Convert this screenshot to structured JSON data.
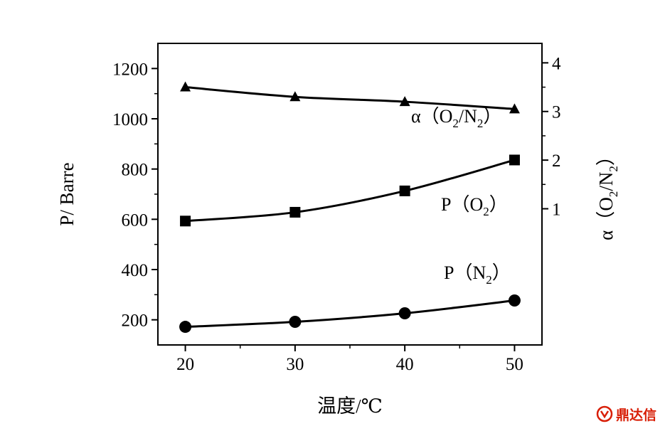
{
  "chart_data": {
    "type": "line",
    "x": [
      20,
      30,
      40,
      50
    ],
    "xlabel": "温度/℃",
    "ylabel": "P/ Barre",
    "y2label": "α（O2/N2）",
    "xlim": [
      17.5,
      52.5
    ],
    "ylim": [
      100,
      1300
    ],
    "y2lim": [
      -1.8,
      4.4
    ],
    "x_ticks": [
      20,
      30,
      40,
      50
    ],
    "y_ticks": [
      200,
      400,
      600,
      800,
      1000,
      1200
    ],
    "y2_ticks": [
      1,
      2,
      3,
      4
    ],
    "grid": false,
    "legend": "none",
    "series": [
      {
        "name": "α（O2/N2）",
        "axis": "right",
        "marker": "triangle",
        "values": [
          3.5,
          3.3,
          3.2,
          3.05
        ]
      },
      {
        "name": "P（O2）",
        "axis": "left",
        "marker": "square",
        "values": [
          593,
          628,
          713,
          836
        ]
      },
      {
        "name": "P（N2）",
        "axis": "left",
        "marker": "circle",
        "values": [
          172,
          192,
          226,
          277
        ]
      }
    ]
  },
  "labels": {
    "alpha_main": "α（O",
    "alpha_sub1": "2",
    "alpha_mid": "/N",
    "alpha_sub2": "2",
    "alpha_end": "）",
    "po2_main": "P（O",
    "po2_sub": "2",
    "po2_end": "）",
    "pn2_main": "P（N",
    "pn2_sub": "2",
    "pn2_end": "）",
    "y2_main": "α（O",
    "y2_sub1": "2",
    "y2_mid": "/N",
    "y2_sub2": "2",
    "y2_end": "）"
  },
  "watermark": {
    "text": "鼎达信",
    "icon": "brand-logo-icon",
    "color": "#d81e06"
  }
}
